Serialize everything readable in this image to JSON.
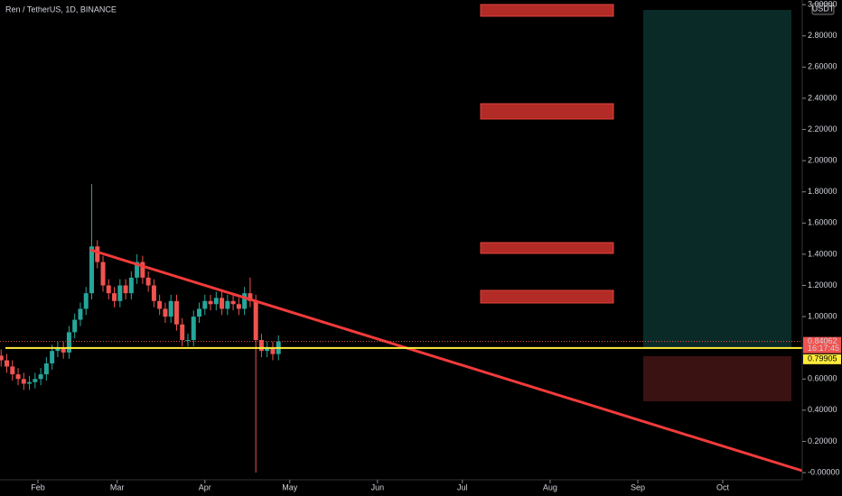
{
  "chart_data": {
    "type": "candlestick",
    "title": "Ren / TetherUS, 1D, BINANCE",
    "currency": "USDT",
    "x": [
      18,
      20,
      22,
      24,
      26,
      28,
      30,
      32,
      34,
      36,
      38,
      40,
      42,
      44,
      46,
      48,
      50,
      52,
      54,
      56,
      58,
      60,
      62,
      64,
      66,
      68,
      70,
      72,
      74,
      76,
      78,
      80,
      82,
      84,
      86,
      88,
      90,
      92,
      94,
      96,
      98,
      100,
      102,
      104,
      106,
      108,
      110,
      112,
      114,
      116
    ],
    "open": [
      0.75,
      0.72,
      0.68,
      0.63,
      0.6,
      0.57,
      0.58,
      0.6,
      0.63,
      0.7,
      0.78,
      0.8,
      0.77,
      0.9,
      0.98,
      1.05,
      1.15,
      1.45,
      1.35,
      1.2,
      1.15,
      1.1,
      1.2,
      1.15,
      1.25,
      1.35,
      1.25,
      1.2,
      1.1,
      1.05,
      1.0,
      1.1,
      0.95,
      0.85,
      0.85,
      1.0,
      1.05,
      1.1,
      1.08,
      1.12,
      1.05,
      1.1,
      1.08,
      1.05,
      1.15,
      1.1,
      0.85,
      0.78,
      0.8,
      0.76
    ],
    "high": [
      0.79,
      0.76,
      0.72,
      0.67,
      0.64,
      0.62,
      0.64,
      0.67,
      0.74,
      0.82,
      0.84,
      0.84,
      0.94,
      1.02,
      1.09,
      1.19,
      1.85,
      1.49,
      1.39,
      1.24,
      1.19,
      1.24,
      1.24,
      1.29,
      1.4,
      1.39,
      1.29,
      1.24,
      1.14,
      1.09,
      1.14,
      1.14,
      0.99,
      0.89,
      1.04,
      1.09,
      1.14,
      1.14,
      1.16,
      1.16,
      1.14,
      1.14,
      1.12,
      1.19,
      1.25,
      1.14,
      0.89,
      0.84,
      0.84,
      0.88
    ],
    "low": [
      0.68,
      0.64,
      0.59,
      0.56,
      0.53,
      0.53,
      0.54,
      0.56,
      0.59,
      0.66,
      0.74,
      0.73,
      0.73,
      0.86,
      0.94,
      1.01,
      1.11,
      1.31,
      1.16,
      1.11,
      1.06,
      1.06,
      1.11,
      1.11,
      1.21,
      1.21,
      1.16,
      1.06,
      1.01,
      0.96,
      0.96,
      0.91,
      0.81,
      0.81,
      0.81,
      0.96,
      1.01,
      1.04,
      1.04,
      1.01,
      1.01,
      1.04,
      1.01,
      1.01,
      1.06,
      0.0,
      0.74,
      0.74,
      0.72,
      0.72
    ],
    "close": [
      0.72,
      0.68,
      0.63,
      0.6,
      0.57,
      0.58,
      0.6,
      0.63,
      0.7,
      0.78,
      0.8,
      0.77,
      0.9,
      0.98,
      1.05,
      1.15,
      1.45,
      1.35,
      1.2,
      1.15,
      1.1,
      1.2,
      1.15,
      1.25,
      1.35,
      1.25,
      1.2,
      1.1,
      1.05,
      1.0,
      1.1,
      0.95,
      0.85,
      0.85,
      1.0,
      1.05,
      1.1,
      1.08,
      1.12,
      1.05,
      1.1,
      1.08,
      1.05,
      1.15,
      1.1,
      0.85,
      0.78,
      0.8,
      0.76,
      0.84
    ],
    "up_color": "#26a69a",
    "down_color": "#ef5350",
    "xlim": [
      17.6,
      301.1
    ],
    "xticks": [
      {
        "value": 31,
        "label": "Feb"
      },
      {
        "value": 59,
        "label": "Mar"
      },
      {
        "value": 90,
        "label": "Apr"
      },
      {
        "value": 120,
        "label": "May"
      },
      {
        "value": 151,
        "label": "Jun"
      },
      {
        "value": 181,
        "label": "Jul"
      },
      {
        "value": 212,
        "label": "Aug"
      },
      {
        "value": 243,
        "label": "Sep"
      },
      {
        "value": 273,
        "label": "Oct"
      }
    ],
    "ylim": [
      -0.046,
      3.03
    ],
    "yticks": [
      {
        "value": 0,
        "label": "-0.00000"
      },
      {
        "value": 0.2,
        "label": "0.20000"
      },
      {
        "value": 0.4,
        "label": "0.40000"
      },
      {
        "value": 0.6,
        "label": "0.60000"
      },
      {
        "value": 0.8,
        "label": "0.80000"
      },
      {
        "value": 1.0,
        "label": "1.00000"
      },
      {
        "value": 1.2,
        "label": "1.20000"
      },
      {
        "value": 1.4,
        "label": "1.40000"
      },
      {
        "value": 1.6,
        "label": "1.60000"
      },
      {
        "value": 1.8,
        "label": "1.80000"
      },
      {
        "value": 2.0,
        "label": "2.00000"
      },
      {
        "value": 2.2,
        "label": "2.20000"
      },
      {
        "value": 2.4,
        "label": "2.40000"
      },
      {
        "value": 2.6,
        "label": "2.60000"
      },
      {
        "value": 2.8,
        "label": "2.80000"
      },
      {
        "value": 3.0,
        "label": "3.00000"
      }
    ],
    "last_price": 0.84062,
    "countdown": "16:17:45",
    "level": 0.79905
  }
}
